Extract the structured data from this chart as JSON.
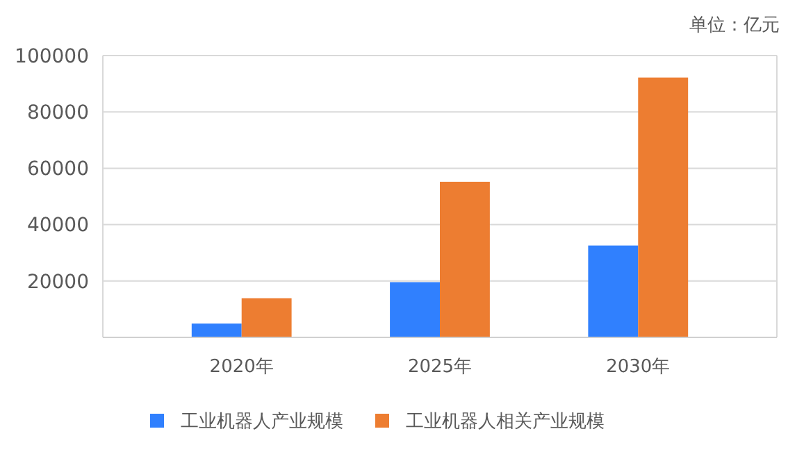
{
  "chart_data": {
    "type": "bar",
    "annotations": [
      "单位：亿元"
    ],
    "categories": [
      "2020年",
      "2025年",
      "2030年"
    ],
    "series": [
      {
        "name": "工业机器人产业规模",
        "color": "#3080fe",
        "values": [
          4900,
          19600,
          32600
        ]
      },
      {
        "name": "工业机器人相关产业规模",
        "color": "#ed7d31",
        "values": [
          13900,
          55200,
          92200
        ]
      }
    ],
    "ylim": [
      0,
      100000
    ],
    "yticks": [
      20000,
      40000,
      60000,
      80000,
      100000
    ],
    "grid": "y",
    "legend": "bottom"
  }
}
